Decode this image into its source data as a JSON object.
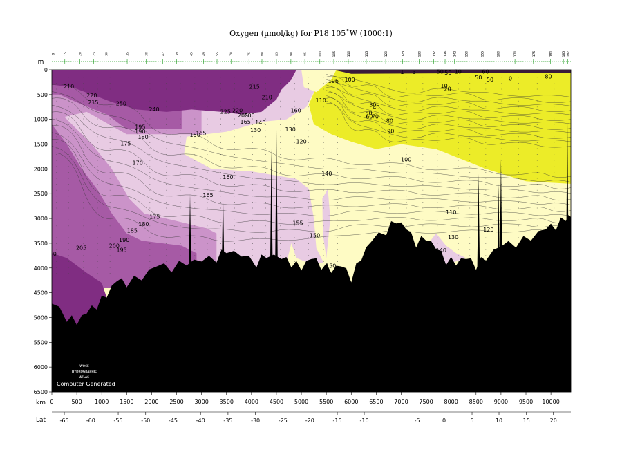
{
  "chart_data": {
    "type": "heatmap",
    "title": "Oxygen (µmol/kg) for P18 105˚W (1000:1)",
    "depth_unit": "m",
    "distance_unit": "km",
    "lat_label": "Lat",
    "ylim": [
      6500,
      0
    ],
    "xlim": [
      0,
      10400
    ],
    "yticks": [
      0,
      500,
      1000,
      1500,
      2000,
      2500,
      3000,
      3500,
      4000,
      4500,
      5000,
      5500,
      6000,
      6500
    ],
    "xticks": [
      0,
      500,
      1000,
      1500,
      2000,
      2500,
      3000,
      3500,
      4000,
      4500,
      5000,
      5500,
      6000,
      6500,
      7000,
      7500,
      8000,
      8500,
      9000,
      9500,
      10000
    ],
    "lat_ticks": [
      {
        "km": 250,
        "label": "-65"
      },
      {
        "km": 780,
        "label": "-60"
      },
      {
        "km": 1330,
        "label": "-55"
      },
      {
        "km": 1880,
        "label": "-50"
      },
      {
        "km": 2430,
        "label": "-45"
      },
      {
        "km": 2980,
        "label": "-40"
      },
      {
        "km": 3530,
        "label": "-35"
      },
      {
        "km": 4080,
        "label": "-30"
      },
      {
        "km": 4630,
        "label": "-25"
      },
      {
        "km": 5170,
        "label": "-20"
      },
      {
        "km": 5720,
        "label": "-15"
      },
      {
        "km": 6260,
        "label": "-10"
      },
      {
        "km": 7320,
        "label": "-5"
      },
      {
        "km": 7860,
        "label": "0"
      },
      {
        "km": 8420,
        "label": "5"
      },
      {
        "km": 8960,
        "label": "10"
      },
      {
        "km": 9510,
        "label": "15"
      },
      {
        "km": 10050,
        "label": "20"
      }
    ],
    "stations": [
      {
        "km": 20,
        "label": "9"
      },
      {
        "km": 260,
        "label": "15"
      },
      {
        "km": 560,
        "label": "20"
      },
      {
        "km": 840,
        "label": "25"
      },
      {
        "km": 1090,
        "label": "30"
      },
      {
        "km": 1510,
        "label": "35"
      },
      {
        "km": 1890,
        "label": "38"
      },
      {
        "km": 2220,
        "label": "42"
      },
      {
        "km": 2500,
        "label": "39"
      },
      {
        "km": 2790,
        "label": "45"
      },
      {
        "km": 3040,
        "label": "49"
      },
      {
        "km": 3310,
        "label": "55"
      },
      {
        "km": 3590,
        "label": "70"
      },
      {
        "km": 3950,
        "label": "75"
      },
      {
        "km": 4210,
        "label": "80"
      },
      {
        "km": 4500,
        "label": "85"
      },
      {
        "km": 4790,
        "label": "90"
      },
      {
        "km": 5070,
        "label": "95"
      },
      {
        "km": 5370,
        "label": "100"
      },
      {
        "km": 5650,
        "label": "105"
      },
      {
        "km": 5940,
        "label": "110"
      },
      {
        "km": 6300,
        "label": "115"
      },
      {
        "km": 6690,
        "label": "120"
      },
      {
        "km": 7030,
        "label": "125"
      },
      {
        "km": 7360,
        "label": "130"
      },
      {
        "km": 7650,
        "label": "132"
      },
      {
        "km": 7880,
        "label": "136"
      },
      {
        "km": 8070,
        "label": "142"
      },
      {
        "km": 8300,
        "label": "150"
      },
      {
        "km": 8620,
        "label": "155"
      },
      {
        "km": 8940,
        "label": "160"
      },
      {
        "km": 9280,
        "label": "170"
      },
      {
        "km": 9650,
        "label": "175"
      },
      {
        "km": 9990,
        "label": "180"
      },
      {
        "km": 10250,
        "label": "185"
      },
      {
        "km": 10340,
        "label": "187"
      }
    ],
    "colors": {
      "lt90": "#ecec28",
      "90to150": "#fefbc4",
      "150to175": "#e8cbe3",
      "175to200": "#cb93c9",
      "200to225": "#a65aa5",
      "gt225": "#802d82",
      "bottom": "#000000"
    },
    "contour_labels": [
      {
        "km": 340,
        "depth": 340,
        "text": "210"
      },
      {
        "km": 800,
        "depth": 520,
        "text": "220"
      },
      {
        "km": 830,
        "depth": 660,
        "text": "215"
      },
      {
        "km": 1390,
        "depth": 680,
        "text": "250"
      },
      {
        "km": 2050,
        "depth": 800,
        "text": "240"
      },
      {
        "km": 1770,
        "depth": 1160,
        "text": "195"
      },
      {
        "km": 1770,
        "depth": 1250,
        "text": "190"
      },
      {
        "km": 1830,
        "depth": 1360,
        "text": "180"
      },
      {
        "km": 1480,
        "depth": 1490,
        "text": "175"
      },
      {
        "km": 1720,
        "depth": 1880,
        "text": "170"
      },
      {
        "km": 2990,
        "depth": 1280,
        "text": "165"
      },
      {
        "km": 2870,
        "depth": 1320,
        "text": "150"
      },
      {
        "km": 3480,
        "depth": 850,
        "text": "225"
      },
      {
        "km": 3720,
        "depth": 820,
        "text": "220"
      },
      {
        "km": 3830,
        "depth": 930,
        "text": "205"
      },
      {
        "km": 3960,
        "depth": 930,
        "text": "200"
      },
      {
        "km": 3880,
        "depth": 1050,
        "text": "165"
      },
      {
        "km": 4180,
        "depth": 1070,
        "text": "140"
      },
      {
        "km": 4080,
        "depth": 1220,
        "text": "130"
      },
      {
        "km": 4780,
        "depth": 1210,
        "text": "130"
      },
      {
        "km": 4890,
        "depth": 820,
        "text": "160"
      },
      {
        "km": 5390,
        "depth": 620,
        "text": "110"
      },
      {
        "km": 4310,
        "depth": 560,
        "text": "210"
      },
      {
        "km": 4060,
        "depth": 350,
        "text": "215"
      },
      {
        "km": 5640,
        "depth": 230,
        "text": "196"
      },
      {
        "km": 5970,
        "depth": 200,
        "text": "100"
      },
      {
        "km": 7860,
        "depth": 330,
        "text": "10"
      },
      {
        "km": 7930,
        "depth": 390,
        "text": "20"
      },
      {
        "km": 7780,
        "depth": 40,
        "text": "50"
      },
      {
        "km": 7940,
        "depth": 60,
        "text": "50"
      },
      {
        "km": 8140,
        "depth": 40,
        "text": "10"
      },
      {
        "km": 8690,
        "depth": 40,
        "text": "60"
      },
      {
        "km": 8550,
        "depth": 160,
        "text": "50"
      },
      {
        "km": 8780,
        "depth": 200,
        "text": "50"
      },
      {
        "km": 9190,
        "depth": 180,
        "text": "0"
      },
      {
        "km": 9950,
        "depth": 140,
        "text": "80"
      },
      {
        "km": 7020,
        "depth": 50,
        "text": "1"
      },
      {
        "km": 7260,
        "depth": 50,
        "text": "3"
      },
      {
        "km": 6430,
        "depth": 710,
        "text": "30"
      },
      {
        "km": 6500,
        "depth": 760,
        "text": "40"
      },
      {
        "km": 6350,
        "depth": 880,
        "text": "50"
      },
      {
        "km": 6360,
        "depth": 950,
        "text": "60"
      },
      {
        "km": 6480,
        "depth": 950,
        "text": "70"
      },
      {
        "km": 6770,
        "depth": 1030,
        "text": "80"
      },
      {
        "km": 6790,
        "depth": 1240,
        "text": "90"
      },
      {
        "km": 5000,
        "depth": 1450,
        "text": "120"
      },
      {
        "km": 7100,
        "depth": 1810,
        "text": "100"
      },
      {
        "km": 5510,
        "depth": 2100,
        "text": "140"
      },
      {
        "km": 3530,
        "depth": 2170,
        "text": "160"
      },
      {
        "km": 3130,
        "depth": 2530,
        "text": "165"
      },
      {
        "km": 2060,
        "depth": 2970,
        "text": "175"
      },
      {
        "km": 1840,
        "depth": 3120,
        "text": "180"
      },
      {
        "km": 1610,
        "depth": 3250,
        "text": "185"
      },
      {
        "km": 1450,
        "depth": 3440,
        "text": "190"
      },
      {
        "km": 1250,
        "depth": 3560,
        "text": "200"
      },
      {
        "km": 1400,
        "depth": 3640,
        "text": "195"
      },
      {
        "km": 590,
        "depth": 3600,
        "text": "205"
      },
      {
        "km": 60,
        "depth": 3720,
        "text": "0"
      },
      {
        "km": 4930,
        "depth": 3100,
        "text": "155"
      },
      {
        "km": 5270,
        "depth": 3350,
        "text": "150"
      },
      {
        "km": 5590,
        "depth": 3960,
        "text": "150"
      },
      {
        "km": 8000,
        "depth": 2880,
        "text": "110"
      },
      {
        "km": 8040,
        "depth": 3380,
        "text": "130"
      },
      {
        "km": 8750,
        "depth": 3230,
        "text": "120"
      },
      {
        "km": 7800,
        "depth": 3650,
        "text": "140"
      }
    ]
  },
  "credit": {
    "logo_line1": "WOCE",
    "logo_line2": "HYDROGRAPHIC",
    "logo_line3": "ATLAS",
    "computer_generated": "Computer Generated"
  }
}
